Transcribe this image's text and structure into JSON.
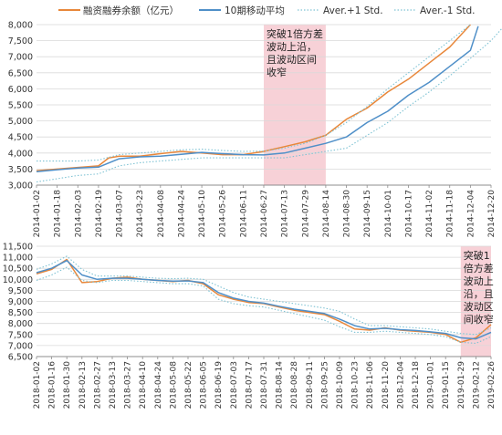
{
  "legend": {
    "balance": "融资融券余额（亿元）",
    "ma10": "10期移动平均",
    "upper": "Aver.+1 Std.",
    "lower": "Aver.-1 Std."
  },
  "colors": {
    "balance": "#E8873A",
    "ma10": "#4F8FC8",
    "band": "#7FC3D4",
    "highlight": "#F6C9D0",
    "grid": "#D9D9D9"
  },
  "chart_data": [
    {
      "type": "line",
      "ylim": [
        3000,
        8000
      ],
      "yticks": [
        "3,000",
        "3,500",
        "4,000",
        "4,500",
        "5,000",
        "5,500",
        "6,000",
        "6,500",
        "7,000",
        "7,500",
        "8,000"
      ],
      "xticks": [
        "2014-01-02",
        "2014-01-18",
        "2014-02-03",
        "2014-02-19",
        "2014-03-07",
        "2014-03-23",
        "2014-04-08",
        "2014-04-24",
        "2014-05-10",
        "2014-05-26",
        "2014-06-11",
        "2014-06-27",
        "2014-07-13",
        "2014-07-29",
        "2014-08-14",
        "2014-08-30",
        "2014-09-15",
        "2014-10-01",
        "2014-10-17",
        "2014-11-02",
        "2014-11-18",
        "2014-12-04",
        "2014-12-20"
      ],
      "annotation": "突破1倍方差\n波动上沿，\n且波动区间\n收窄",
      "highlight_range": [
        "2014-06-27",
        "2014-08-14"
      ],
      "series": [
        {
          "name": "融资融券余额（亿元）",
          "x": [
            "2014-01-02",
            "2014-01-18",
            "2014-02-03",
            "2014-02-19",
            "2014-02-27",
            "2014-03-07",
            "2014-03-23",
            "2014-04-08",
            "2014-04-24",
            "2014-05-10",
            "2014-05-26",
            "2014-06-11",
            "2014-06-27",
            "2014-07-13",
            "2014-07-29",
            "2014-08-14",
            "2014-08-30",
            "2014-09-15",
            "2014-10-01",
            "2014-10-17",
            "2014-11-02",
            "2014-11-18",
            "2014-12-04"
          ],
          "values": [
            3450,
            3500,
            3550,
            3600,
            3850,
            3900,
            3900,
            3980,
            4050,
            4000,
            3950,
            3950,
            4050,
            4200,
            4350,
            4550,
            5050,
            5400,
            5900,
            6300,
            6800,
            7300,
            8000
          ]
        },
        {
          "name": "10期移动平均",
          "x": [
            "2014-01-02",
            "2014-01-18",
            "2014-02-03",
            "2014-02-19",
            "2014-03-07",
            "2014-03-23",
            "2014-04-08",
            "2014-04-24",
            "2014-05-10",
            "2014-05-26",
            "2014-06-11",
            "2014-06-27",
            "2014-07-13",
            "2014-07-29",
            "2014-08-14",
            "2014-08-30",
            "2014-09-15",
            "2014-10-01",
            "2014-10-17",
            "2014-11-02",
            "2014-11-18",
            "2014-12-04",
            "2014-12-10"
          ],
          "values": [
            3420,
            3480,
            3530,
            3560,
            3820,
            3880,
            3900,
            3960,
            4020,
            3980,
            3950,
            3940,
            4000,
            4150,
            4300,
            4500,
            4950,
            5300,
            5800,
            6200,
            6700,
            7200,
            7950
          ]
        },
        {
          "name": "Aver.+1 Std.",
          "x": [
            "2014-01-02",
            "2014-01-18",
            "2014-02-03",
            "2014-02-19",
            "2014-03-07",
            "2014-03-23",
            "2014-04-08",
            "2014-04-24",
            "2014-05-10",
            "2014-05-26",
            "2014-06-11",
            "2014-06-27",
            "2014-07-13",
            "2014-07-29",
            "2014-08-14",
            "2014-08-30",
            "2014-09-15",
            "2014-10-01",
            "2014-10-17",
            "2014-11-02",
            "2014-11-18",
            "2014-12-04"
          ],
          "values": [
            3750,
            3750,
            3750,
            3780,
            3950,
            4000,
            4050,
            4100,
            4120,
            4080,
            4050,
            4060,
            4150,
            4300,
            4550,
            4950,
            5450,
            6000,
            6500,
            7000,
            7500,
            8000
          ]
        },
        {
          "name": "Aver.-1 Std.",
          "x": [
            "2014-01-02",
            "2014-01-18",
            "2014-02-03",
            "2014-02-19",
            "2014-03-07",
            "2014-03-23",
            "2014-04-08",
            "2014-04-24",
            "2014-05-10",
            "2014-05-26",
            "2014-06-11",
            "2014-06-27",
            "2014-07-13",
            "2014-07-29",
            "2014-08-14",
            "2014-08-30",
            "2014-09-15",
            "2014-10-01",
            "2014-10-17",
            "2014-11-02",
            "2014-11-18",
            "2014-12-04",
            "2014-12-20",
            "2014-12-31"
          ],
          "values": [
            3100,
            3200,
            3300,
            3350,
            3600,
            3700,
            3750,
            3800,
            3850,
            3850,
            3850,
            3850,
            3850,
            3950,
            4050,
            4150,
            4550,
            4950,
            5450,
            5900,
            6400,
            6950,
            7500,
            8000
          ]
        }
      ]
    },
    {
      "type": "line",
      "ylim": [
        6500,
        11500
      ],
      "yticks": [
        "6,500",
        "7,000",
        "7,500",
        "8,000",
        "8,500",
        "9,000",
        "9,500",
        "10,000",
        "10,500",
        "11,000",
        "11,500"
      ],
      "xticks": [
        "2018-01-02",
        "2018-01-16",
        "2018-01-30",
        "2018-02-13",
        "2018-02-27",
        "2018-03-13",
        "2018-03-27",
        "2018-04-10",
        "2018-04-24",
        "2018-05-08",
        "2018-05-22",
        "2018-06-05",
        "2018-06-19",
        "2018-07-03",
        "2018-07-17",
        "2018-07-31",
        "2018-08-14",
        "2018-08-28",
        "2018-09-11",
        "2018-09-25",
        "2018-10-09",
        "2018-10-23",
        "2018-11-06",
        "2018-11-20",
        "2018-12-04",
        "2018-12-18",
        "2019-01-01",
        "2019-01-15",
        "2019-01-29",
        "2019-02-12",
        "2019-02-26"
      ],
      "annotation": "突破1\n倍方差\n波动上\n沿，且\n波动区\n间收窄",
      "highlight_range": [
        "2019-01-29",
        "2019-02-26"
      ],
      "series": [
        {
          "name": "融资融券余额（亿元）",
          "x": [
            "2018-01-02",
            "2018-01-16",
            "2018-01-30",
            "2018-02-13",
            "2018-02-27",
            "2018-03-13",
            "2018-03-27",
            "2018-04-10",
            "2018-04-24",
            "2018-05-08",
            "2018-05-22",
            "2018-06-05",
            "2018-06-19",
            "2018-07-03",
            "2018-07-17",
            "2018-07-31",
            "2018-08-14",
            "2018-08-28",
            "2018-09-11",
            "2018-09-25",
            "2018-10-09",
            "2018-10-23",
            "2018-11-06",
            "2018-11-20",
            "2018-12-04",
            "2018-12-18",
            "2019-01-01",
            "2019-01-15",
            "2019-01-29",
            "2019-02-12",
            "2019-02-26"
          ],
          "values": [
            10250,
            10450,
            10900,
            9850,
            9900,
            10050,
            10100,
            10000,
            9950,
            9900,
            9950,
            9800,
            9300,
            9100,
            8950,
            8900,
            8750,
            8600,
            8500,
            8400,
            8100,
            7750,
            7700,
            7800,
            7700,
            7650,
            7600,
            7500,
            7150,
            7350,
            7950
          ]
        },
        {
          "name": "10期移动平均",
          "x": [
            "2018-01-02",
            "2018-01-16",
            "2018-01-30",
            "2018-02-13",
            "2018-02-27",
            "2018-03-13",
            "2018-03-27",
            "2018-04-10",
            "2018-04-24",
            "2018-05-08",
            "2018-05-22",
            "2018-06-05",
            "2018-06-19",
            "2018-07-03",
            "2018-07-17",
            "2018-07-31",
            "2018-08-14",
            "2018-08-28",
            "2018-09-11",
            "2018-09-25",
            "2018-10-09",
            "2018-10-23",
            "2018-11-06",
            "2018-11-20",
            "2018-12-04",
            "2018-12-18",
            "2019-01-01",
            "2019-01-15",
            "2019-01-29",
            "2019-02-12",
            "2019-02-26"
          ],
          "values": [
            10300,
            10500,
            10850,
            10200,
            10000,
            10050,
            10050,
            10000,
            9950,
            9920,
            9930,
            9850,
            9400,
            9150,
            9000,
            8920,
            8780,
            8650,
            8550,
            8450,
            8200,
            7900,
            7750,
            7780,
            7720,
            7680,
            7620,
            7550,
            7350,
            7300,
            7600
          ]
        },
        {
          "name": "Aver.+1 Std.",
          "x": [
            "2018-01-02",
            "2018-01-16",
            "2018-01-30",
            "2018-02-13",
            "2018-02-27",
            "2018-03-13",
            "2018-03-27",
            "2018-04-10",
            "2018-04-24",
            "2018-05-08",
            "2018-05-22",
            "2018-06-05",
            "2018-06-19",
            "2018-07-03",
            "2018-07-17",
            "2018-07-31",
            "2018-08-14",
            "2018-08-28",
            "2018-09-11",
            "2018-09-25",
            "2018-10-09",
            "2018-10-23",
            "2018-11-06",
            "2018-11-20",
            "2018-12-04",
            "2018-12-18",
            "2019-01-01",
            "2019-01-15",
            "2019-01-29",
            "2019-02-12",
            "2019-02-26"
          ],
          "values": [
            10450,
            10700,
            11050,
            10450,
            10150,
            10150,
            10150,
            10100,
            10050,
            10030,
            10050,
            10000,
            9700,
            9400,
            9200,
            9100,
            9000,
            8900,
            8800,
            8700,
            8550,
            8200,
            7900,
            7900,
            7850,
            7800,
            7750,
            7650,
            7550,
            7500,
            7800
          ]
        },
        {
          "name": "Aver.-1 Std.",
          "x": [
            "2018-01-02",
            "2018-01-16",
            "2018-01-30",
            "2018-02-13",
            "2018-02-27",
            "2018-03-13",
            "2018-03-27",
            "2018-04-10",
            "2018-04-24",
            "2018-05-08",
            "2018-05-22",
            "2018-06-05",
            "2018-06-19",
            "2018-07-03",
            "2018-07-17",
            "2018-07-31",
            "2018-08-14",
            "2018-08-28",
            "2018-09-11",
            "2018-09-25",
            "2018-10-09",
            "2018-10-23",
            "2018-11-06",
            "2018-11-20",
            "2018-12-04",
            "2018-12-18",
            "2019-01-01",
            "2019-01-15",
            "2019-01-29",
            "2019-02-12",
            "2019-02-26"
          ],
          "values": [
            9950,
            10200,
            10550,
            9950,
            9850,
            9950,
            9950,
            9900,
            9850,
            9800,
            9800,
            9700,
            9100,
            8900,
            8800,
            8750,
            8600,
            8450,
            8300,
            8150,
            7850,
            7600,
            7600,
            7650,
            7600,
            7550,
            7500,
            7400,
            7150,
            7100,
            7400
          ]
        }
      ]
    }
  ]
}
